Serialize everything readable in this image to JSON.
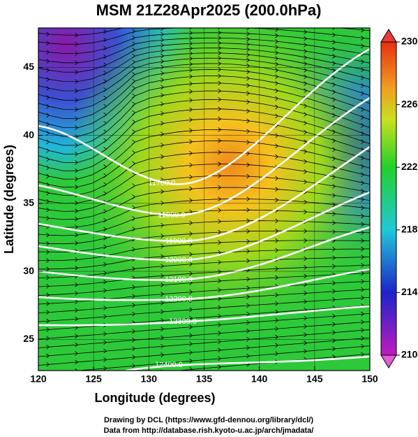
{
  "map": {
    "title": "MSM 21Z28Apr2025 (200.0hPa)",
    "xlabel": "Longitude (degrees)",
    "ylabel": "Latitude  (degrees)",
    "xlim": [
      120,
      150
    ],
    "ylim": [
      22.7,
      47.9
    ],
    "xticks": [
      120,
      125,
      130,
      135,
      140,
      145,
      150
    ],
    "yticks": [
      25,
      30,
      35,
      40,
      45
    ],
    "grid": true,
    "colorbar": {
      "lim": [
        210,
        230
      ],
      "ticks": [
        210,
        214,
        218,
        222,
        226,
        230
      ]
    },
    "contour_labels": [
      "11700.0",
      "11800.0",
      "11900.0",
      "12000.0",
      "12100.0",
      "12200.0",
      "12300.0",
      "12400.0"
    ]
  },
  "footer": [
    "Drawing by DCL (https://www.gfd-dennou.org/library/dcl/)",
    "Data from http://database.rish.kyoto-u.ac.jp/arch/jmadata/"
  ]
}
